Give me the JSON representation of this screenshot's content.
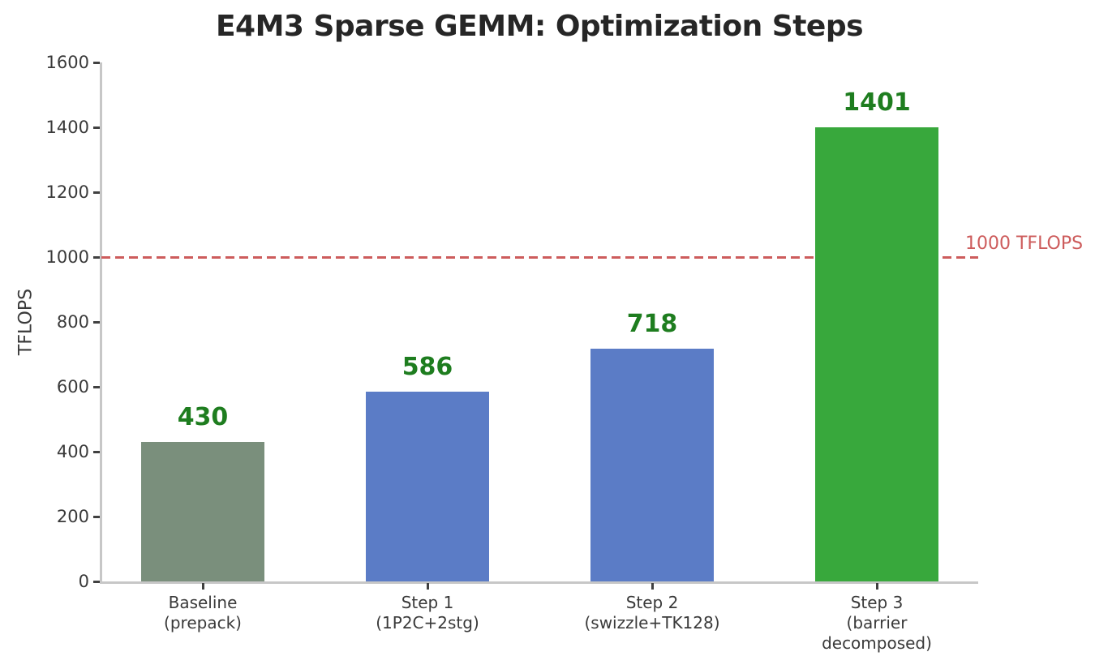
{
  "chart_data": {
    "type": "bar",
    "title": "E4M3 Sparse GEMM: Optimization Steps",
    "xlabel": "",
    "ylabel": "TFLOPS",
    "categories": [
      "Baseline\n(prepack)",
      "Step 1\n(1P2C+2stg)",
      "Step 2\n(swizzle+TK128)",
      "Step 3\n(barrier\ndecomposed)"
    ],
    "values": [
      430,
      586,
      718,
      1401
    ],
    "value_labels": [
      "430",
      "586",
      "718",
      "1401"
    ],
    "bar_colors": [
      "#7a8f7c",
      "#5b7cc6",
      "#5b7cc6",
      "#38a83c"
    ],
    "value_label_color": "#1e7d1f",
    "ylim": [
      0,
      1600
    ],
    "yticks": [
      0,
      200,
      400,
      600,
      800,
      1000,
      1200,
      1400,
      1600
    ],
    "grid": false,
    "legend": null,
    "reference_line": {
      "value": 1000,
      "label": "1000 TFLOPS",
      "color": "#cd5c5c",
      "style": "dashed"
    },
    "text_color": "#3a3a3a",
    "title_color": "#262626",
    "spine_color": "#c7c7c7"
  }
}
